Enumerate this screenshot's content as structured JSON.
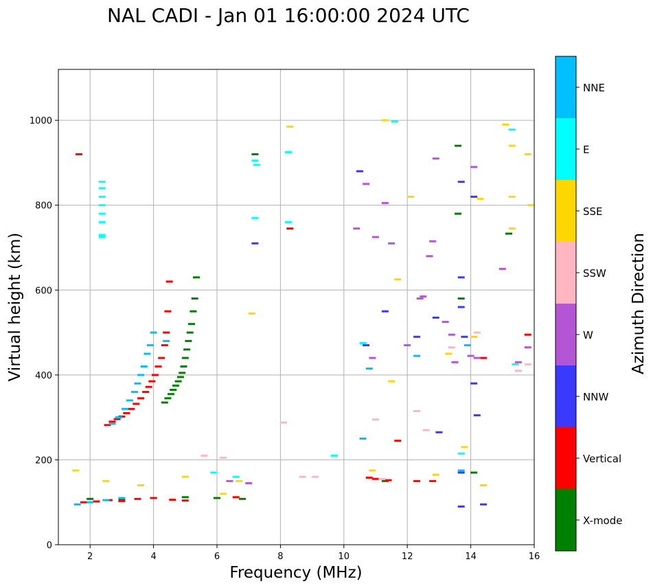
{
  "chart_data": {
    "type": "scatter",
    "title": "NAL CADI - Jan 01 16:00:00 2024 UTC",
    "xlabel": "Frequency (MHz)",
    "ylabel": "Virtual height (km)",
    "xlim": [
      1,
      16
    ],
    "ylim": [
      0,
      1120
    ],
    "xticks": [
      "2",
      "4",
      "6",
      "8",
      "10",
      "12",
      "14",
      "16"
    ],
    "yticks": [
      "0",
      "200",
      "400",
      "600",
      "800",
      "1000"
    ],
    "grid": true,
    "colorbar": {
      "label": "Azimuth Direction",
      "categories": [
        {
          "name": "X-mode",
          "color": "#008000"
        },
        {
          "name": "Vertical",
          "color": "#ff0000"
        },
        {
          "name": "NNW",
          "color": "#3a3aff"
        },
        {
          "name": "W",
          "color": "#b455d6"
        },
        {
          "name": "SSW",
          "color": "#ffb6c1"
        },
        {
          "name": "SSE",
          "color": "#ffd700"
        },
        {
          "name": "E",
          "color": "#00ffff"
        },
        {
          "name": "NNE",
          "color": "#00bfff"
        }
      ]
    },
    "series": [
      {
        "name": "X-mode",
        "x": [
          4.35,
          4.45,
          4.55,
          4.62,
          4.7,
          4.78,
          4.85,
          4.9,
          4.95,
          5.0,
          5.05,
          5.1,
          5.15,
          5.2,
          5.25,
          5.3,
          5.35,
          2.0,
          3.0,
          4.0,
          5.0,
          6.0,
          6.8,
          7.2,
          11.3,
          13.6,
          13.6,
          13.7,
          14.1,
          15.2
        ],
        "y": [
          335,
          345,
          355,
          365,
          375,
          385,
          395,
          405,
          420,
          440,
          460,
          480,
          500,
          520,
          550,
          580,
          630,
          108,
          106,
          110,
          112,
          110,
          108,
          920,
          150,
          940,
          780,
          580,
          170,
          733
        ]
      },
      {
        "name": "Vertical",
        "x": [
          2.55,
          2.7,
          2.85,
          3.0,
          3.15,
          3.3,
          3.45,
          3.6,
          3.75,
          3.85,
          3.95,
          4.05,
          4.15,
          4.25,
          4.35,
          4.4,
          4.45,
          4.5,
          1.65,
          1.8,
          2.2,
          2.6,
          3.0,
          3.5,
          4.0,
          4.6,
          5.0,
          6.6,
          10.8,
          11.0,
          11.4,
          12.3,
          12.8,
          14.4,
          15.8,
          8.3,
          11.7
        ],
        "y": [
          282,
          290,
          296,
          302,
          310,
          320,
          332,
          345,
          360,
          372,
          385,
          400,
          420,
          440,
          470,
          500,
          550,
          620,
          920,
          100,
          102,
          105,
          103,
          108,
          110,
          106,
          104,
          112,
          158,
          155,
          152,
          150,
          150,
          440,
          495,
          745,
          245
        ]
      },
      {
        "name": "NNW",
        "x": [
          10.5,
          10.7,
          11.3,
          12.3,
          12.9,
          13.0,
          13.7,
          13.7,
          13.7,
          13.7,
          13.8,
          14.1,
          14.2,
          14.4,
          14.1,
          13.7,
          7.2
        ],
        "y": [
          880,
          470,
          550,
          490,
          535,
          265,
          855,
          630,
          560,
          170,
          490,
          380,
          305,
          95,
          820,
          90,
          710
        ]
      },
      {
        "name": "W",
        "x": [
          10.4,
          10.7,
          11.0,
          11.3,
          12.0,
          12.5,
          12.7,
          12.9,
          13.2,
          13.4,
          14.1,
          14.2,
          15.0,
          15.8,
          10.9,
          11.5,
          12.4,
          12.8,
          13.5,
          14.0,
          15.5,
          6.4,
          7.0
        ],
        "y": [
          745,
          850,
          725,
          805,
          470,
          585,
          680,
          910,
          525,
          495,
          890,
          440,
          650,
          465,
          440,
          710,
          580,
          715,
          430,
          445,
          430,
          150,
          145
        ]
      },
      {
        "name": "SSW",
        "x": [
          8.1,
          8.7,
          9.1,
          11.0,
          11.2,
          12.3,
          12.6,
          13.4,
          14.2,
          15.5,
          15.8,
          5.6,
          6.2
        ],
        "y": [
          288,
          160,
          160,
          295,
          155,
          315,
          270,
          465,
          500,
          410,
          425,
          210,
          205
        ]
      },
      {
        "name": "SSE",
        "x": [
          1.55,
          2.5,
          3.6,
          5.0,
          6.2,
          6.7,
          7.1,
          8.3,
          11.3,
          11.7,
          12.1,
          12.9,
          13.8,
          14.1,
          14.3,
          15.1,
          15.3,
          15.3,
          15.3,
          15.8,
          15.9,
          10.9,
          11.5,
          13.3,
          14.4
        ],
        "y": [
          175,
          150,
          140,
          160,
          120,
          150,
          545,
          985,
          1000,
          625,
          820,
          165,
          230,
          490,
          815,
          990,
          940,
          820,
          745,
          920,
          800,
          175,
          385,
          450,
          140
        ]
      },
      {
        "name": "E",
        "x": [
          2.38,
          2.38,
          2.38,
          2.38,
          2.38,
          2.38,
          2.38,
          2.38,
          7.2,
          7.2,
          7.25,
          8.25,
          8.25,
          9.7,
          10.6,
          11.6,
          13.7,
          15.3,
          15.4,
          5.9,
          6.6
        ],
        "y": [
          730,
          760,
          780,
          800,
          820,
          840,
          855,
          725,
          905,
          770,
          895,
          925,
          760,
          210,
          475,
          997,
          215,
          978,
          425,
          170,
          160
        ]
      },
      {
        "name": "NNE",
        "x": [
          2.7,
          2.9,
          3.1,
          3.25,
          3.4,
          3.5,
          3.6,
          3.7,
          3.8,
          3.9,
          4.0,
          4.4,
          1.6,
          2.0,
          2.5,
          3.0,
          10.6,
          10.8,
          12.3,
          13.7,
          13.9
        ],
        "y": [
          285,
          300,
          320,
          340,
          360,
          380,
          400,
          420,
          450,
          470,
          500,
          480,
          95,
          100,
          105,
          110,
          250,
          415,
          445,
          175,
          470
        ]
      }
    ]
  }
}
